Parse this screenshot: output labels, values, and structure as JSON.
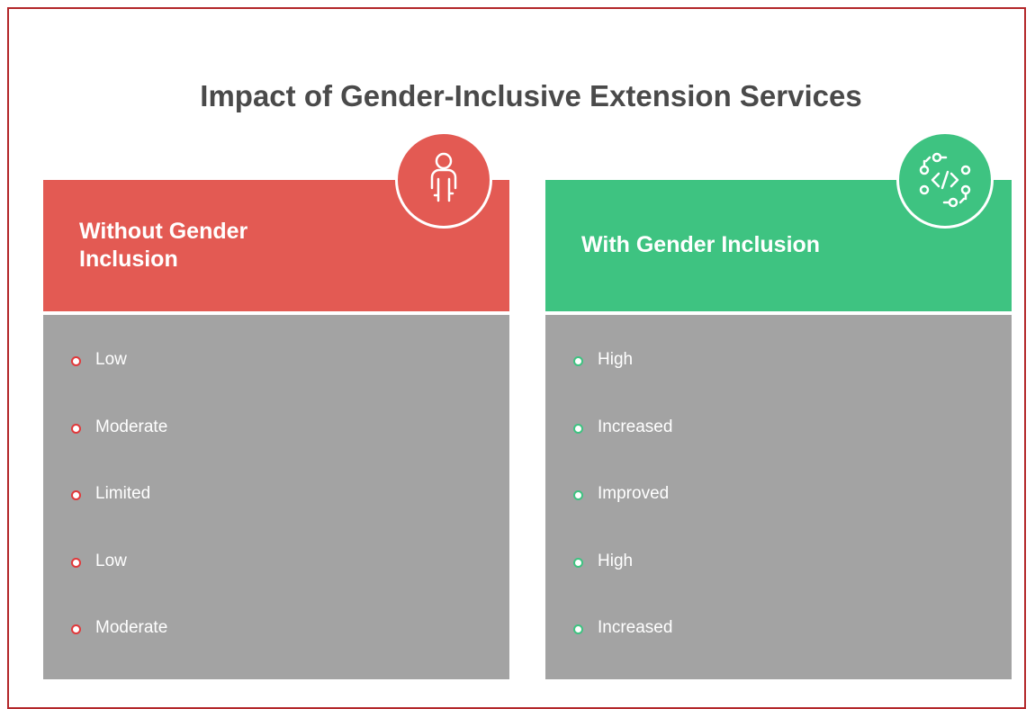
{
  "title": "Impact of Gender-Inclusive Extension Services",
  "columns": [
    {
      "heading": "Without Gender Inclusion",
      "items": [
        "Low",
        "Moderate",
        "Limited",
        "Low",
        "Moderate"
      ]
    },
    {
      "heading": "With Gender Inclusion",
      "items": [
        "High",
        "Increased",
        "Improved",
        "High",
        "Increased"
      ]
    }
  ]
}
